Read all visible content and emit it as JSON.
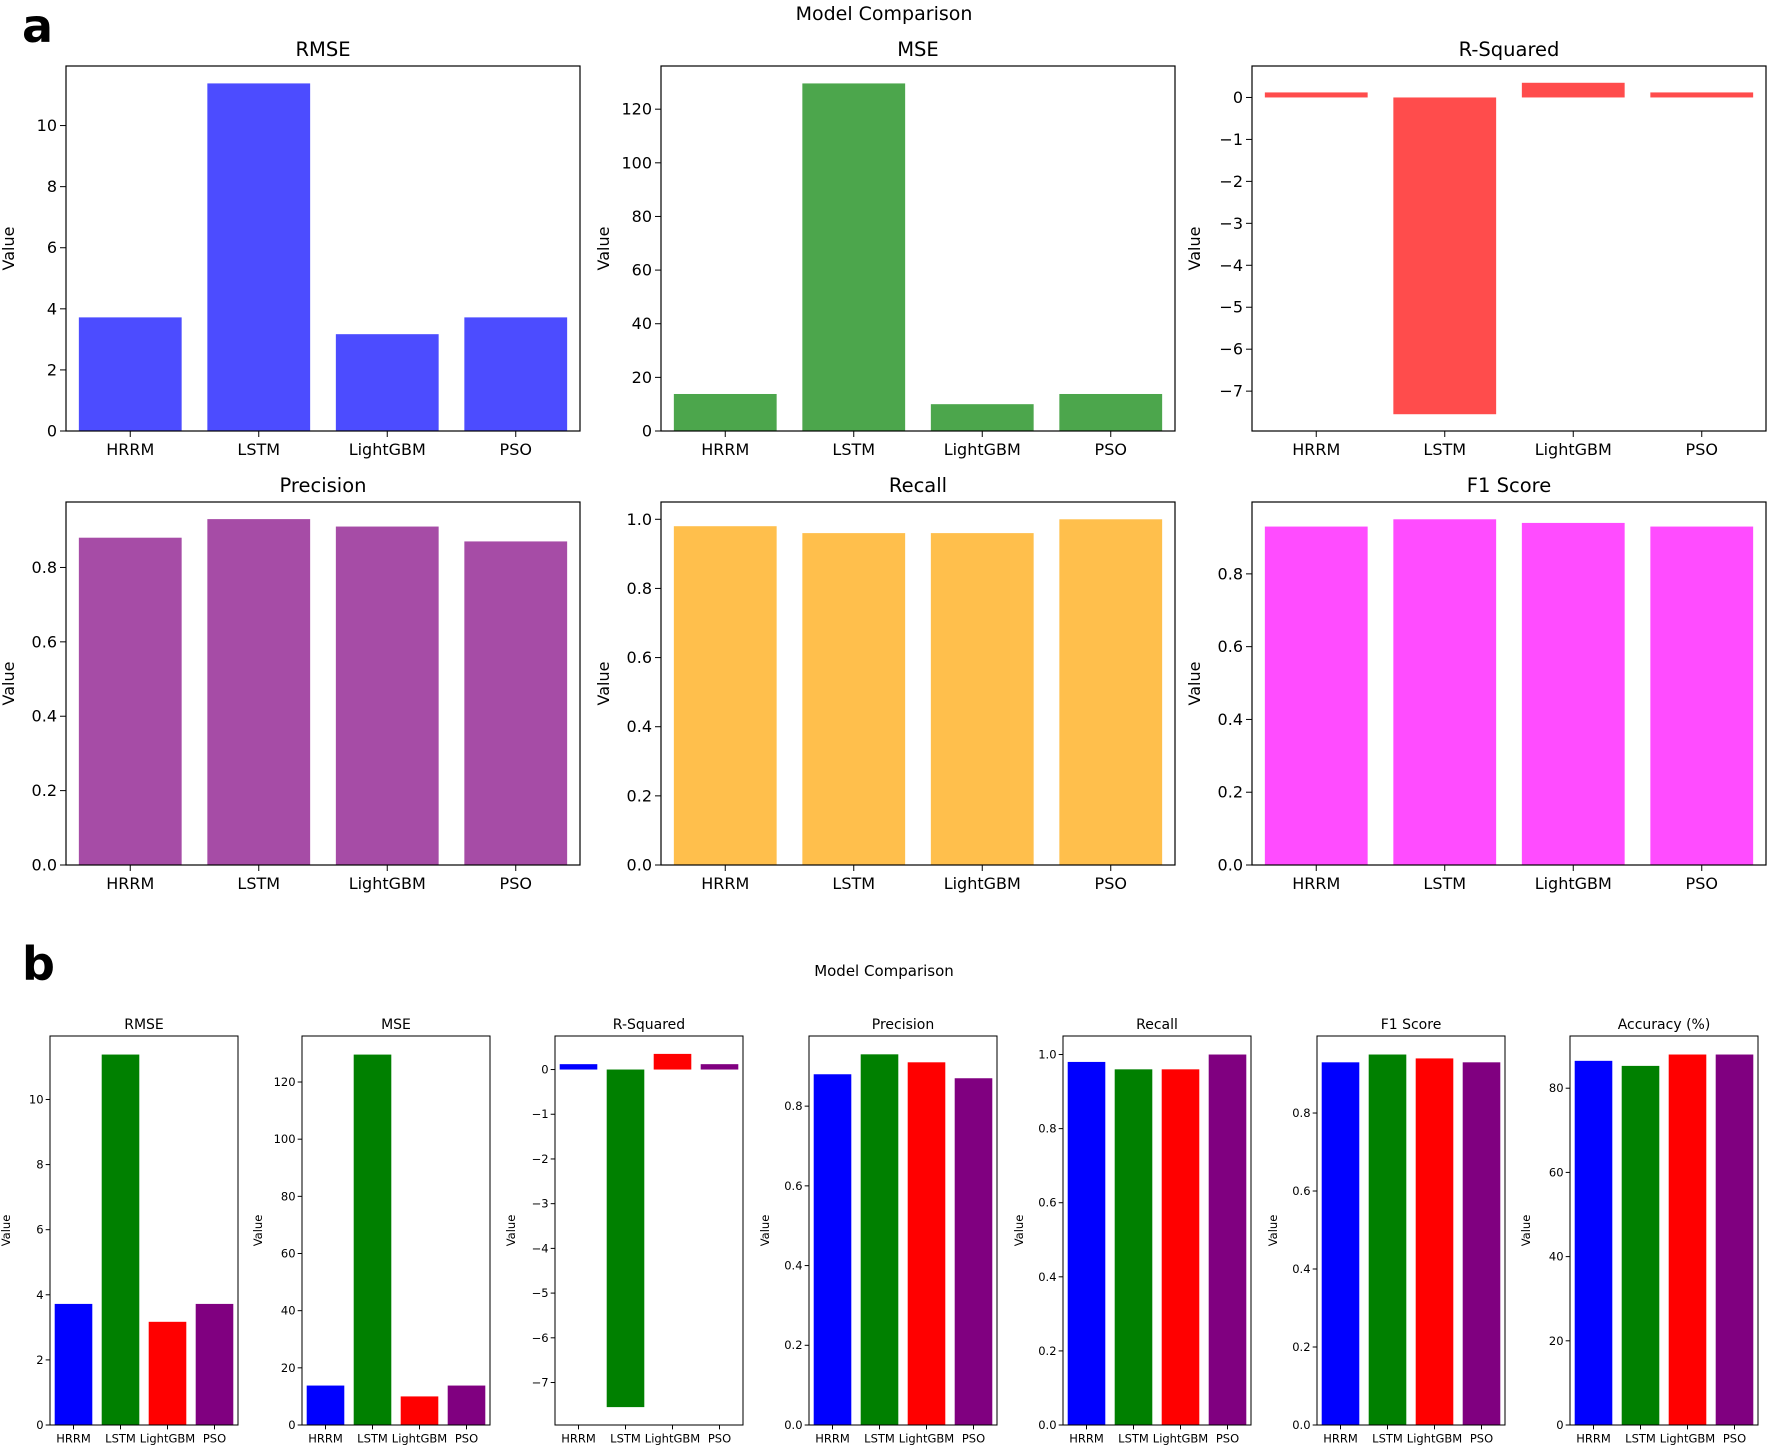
{
  "figure": {
    "panel_labels": [
      "a",
      "b"
    ],
    "panel_a_title": "Model Comparison",
    "panel_b_title": "Model Comparison"
  },
  "chart_data": [
    {
      "panel": "a",
      "type": "bar",
      "title": "RMSE",
      "ylabel": "Value",
      "categories": [
        "HRRM",
        "LSTM",
        "LightGBM",
        "PSO"
      ],
      "values": [
        3.72,
        11.38,
        3.17,
        3.72
      ],
      "ylim": [
        0,
        11.95
      ],
      "yticks": [
        0,
        2,
        4,
        6,
        8,
        10
      ],
      "colors": [
        "#4c4cff",
        "#4c4cff",
        "#4c4cff",
        "#4c4cff"
      ]
    },
    {
      "panel": "a",
      "type": "bar",
      "title": "MSE",
      "ylabel": "Value",
      "categories": [
        "HRRM",
        "LSTM",
        "LightGBM",
        "PSO"
      ],
      "values": [
        13.8,
        129.6,
        10.0,
        13.8
      ],
      "ylim": [
        0,
        136.1
      ],
      "yticks": [
        0,
        20,
        40,
        60,
        80,
        100,
        120
      ],
      "colors": [
        "#4ca64c",
        "#4ca64c",
        "#4ca64c",
        "#4ca64c"
      ]
    },
    {
      "panel": "a",
      "type": "bar",
      "title": "R-Squared",
      "ylabel": "Value",
      "categories": [
        "HRRM",
        "LSTM",
        "LightGBM",
        "PSO"
      ],
      "values": [
        0.12,
        -7.55,
        0.35,
        0.12
      ],
      "ylim": [
        -7.95,
        0.75
      ],
      "yticks": [
        0,
        -1,
        -2,
        -3,
        -4,
        -5,
        -6,
        -7
      ],
      "colors": [
        "#ff4c4c",
        "#ff4c4c",
        "#ff4c4c",
        "#ff4c4c"
      ]
    },
    {
      "panel": "a",
      "type": "bar",
      "title": "Precision",
      "ylabel": "Value",
      "categories": [
        "HRRM",
        "LSTM",
        "LightGBM",
        "PSO"
      ],
      "values": [
        0.88,
        0.93,
        0.91,
        0.87
      ],
      "ylim": [
        0,
        0.976
      ],
      "yticks": [
        0.0,
        0.2,
        0.4,
        0.6,
        0.8
      ],
      "colors": [
        "#a64ca6",
        "#a64ca6",
        "#a64ca6",
        "#a64ca6"
      ]
    },
    {
      "panel": "a",
      "type": "bar",
      "title": "Recall",
      "ylabel": "Value",
      "categories": [
        "HRRM",
        "LSTM",
        "LightGBM",
        "PSO"
      ],
      "values": [
        0.98,
        0.96,
        0.96,
        1.0
      ],
      "ylim": [
        0,
        1.05
      ],
      "yticks": [
        0.0,
        0.2,
        0.4,
        0.6,
        0.8,
        1.0
      ],
      "colors": [
        "#ffbf4c",
        "#ffbf4c",
        "#ffbf4c",
        "#ffbf4c"
      ]
    },
    {
      "panel": "a",
      "type": "bar",
      "title": "F1 Score",
      "ylabel": "Value",
      "categories": [
        "HRRM",
        "LSTM",
        "LightGBM",
        "PSO"
      ],
      "values": [
        0.93,
        0.95,
        0.94,
        0.93
      ],
      "ylim": [
        0,
        0.9975
      ],
      "yticks": [
        0.0,
        0.2,
        0.4,
        0.6,
        0.8
      ],
      "colors": [
        "#ff4cff",
        "#ff4cff",
        "#ff4cff",
        "#ff4cff"
      ]
    },
    {
      "panel": "b",
      "type": "bar",
      "title": "RMSE",
      "ylabel": "Value",
      "categories": [
        "HRRM",
        "LSTM",
        "LightGBM",
        "PSO"
      ],
      "values": [
        3.72,
        11.38,
        3.17,
        3.72
      ],
      "ylim": [
        0,
        11.95
      ],
      "yticks": [
        0,
        2,
        4,
        6,
        8,
        10
      ],
      "colors": [
        "#0000ff",
        "#008000",
        "#ff0000",
        "#800080"
      ]
    },
    {
      "panel": "b",
      "type": "bar",
      "title": "MSE",
      "ylabel": "Value",
      "categories": [
        "HRRM",
        "LSTM",
        "LightGBM",
        "PSO"
      ],
      "values": [
        13.8,
        129.6,
        10.0,
        13.8
      ],
      "ylim": [
        0,
        136.1
      ],
      "yticks": [
        0,
        20,
        40,
        60,
        80,
        100,
        120
      ],
      "colors": [
        "#0000ff",
        "#008000",
        "#ff0000",
        "#800080"
      ]
    },
    {
      "panel": "b",
      "type": "bar",
      "title": "R-Squared",
      "ylabel": "Value",
      "categories": [
        "HRRM",
        "LSTM",
        "LightGBM",
        "PSO"
      ],
      "values": [
        0.12,
        -7.55,
        0.35,
        0.12
      ],
      "ylim": [
        -7.95,
        0.75
      ],
      "yticks": [
        0,
        -1,
        -2,
        -3,
        -4,
        -5,
        -6,
        -7
      ],
      "colors": [
        "#0000ff",
        "#008000",
        "#ff0000",
        "#800080"
      ]
    },
    {
      "panel": "b",
      "type": "bar",
      "title": "Precision",
      "ylabel": "Value",
      "categories": [
        "HRRM",
        "LSTM",
        "LightGBM",
        "PSO"
      ],
      "values": [
        0.88,
        0.93,
        0.91,
        0.87
      ],
      "ylim": [
        0,
        0.976
      ],
      "yticks": [
        0.0,
        0.2,
        0.4,
        0.6,
        0.8
      ],
      "colors": [
        "#0000ff",
        "#008000",
        "#ff0000",
        "#800080"
      ]
    },
    {
      "panel": "b",
      "type": "bar",
      "title": "Recall",
      "ylabel": "Value",
      "categories": [
        "HRRM",
        "LSTM",
        "LightGBM",
        "PSO"
      ],
      "values": [
        0.98,
        0.96,
        0.96,
        1.0
      ],
      "ylim": [
        0,
        1.05
      ],
      "yticks": [
        0.0,
        0.2,
        0.4,
        0.6,
        0.8,
        1.0
      ],
      "colors": [
        "#0000ff",
        "#008000",
        "#ff0000",
        "#800080"
      ]
    },
    {
      "panel": "b",
      "type": "bar",
      "title": "F1 Score",
      "ylabel": "Value",
      "categories": [
        "HRRM",
        "LSTM",
        "LightGBM",
        "PSO"
      ],
      "values": [
        0.93,
        0.95,
        0.94,
        0.93
      ],
      "ylim": [
        0,
        0.9975
      ],
      "yticks": [
        0.0,
        0.2,
        0.4,
        0.6,
        0.8
      ],
      "colors": [
        "#0000ff",
        "#008000",
        "#ff0000",
        "#800080"
      ]
    },
    {
      "panel": "b",
      "type": "bar",
      "title": "Accuracy (%)",
      "ylabel": "Value",
      "categories": [
        "HRRM",
        "LSTM",
        "LightGBM",
        "PSO"
      ],
      "values": [
        86.5,
        85.3,
        88.0,
        88.0
      ],
      "ylim": [
        0,
        92.4
      ],
      "yticks": [
        0,
        20,
        40,
        60,
        80
      ],
      "colors": [
        "#0000ff",
        "#008000",
        "#ff0000",
        "#800080"
      ]
    }
  ]
}
